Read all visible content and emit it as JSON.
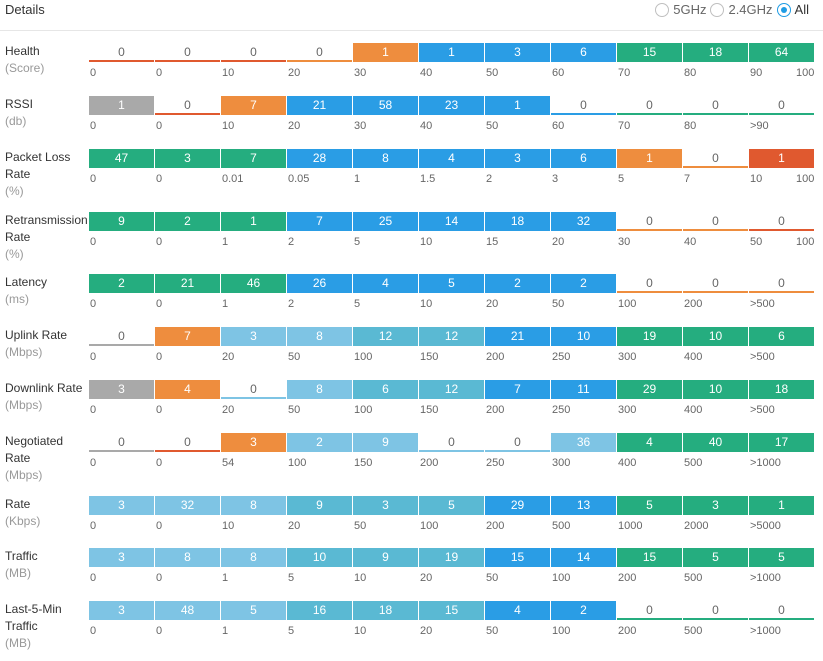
{
  "header": {
    "title": "Details",
    "radio_options": [
      {
        "label": "5GHz",
        "checked": false
      },
      {
        "label": "2.4GHz",
        "checked": false
      },
      {
        "label": "All",
        "checked": true
      }
    ]
  },
  "colors": {
    "red": "#e0592f",
    "orange": "#ee8d3e",
    "gray": "#a9a9a9",
    "lightblue": "#7ec4e4",
    "cyan": "#5ab9d3",
    "blue": "#2a9de5",
    "green": "#25ad7f",
    "empty_text": "#666666"
  },
  "rows": [
    {
      "label_lines": [
        "Health"
      ],
      "unit": "(Score)",
      "segments": [
        {
          "value": "0",
          "color": "red",
          "empty": true
        },
        {
          "value": "0",
          "color": "red",
          "empty": true
        },
        {
          "value": "0",
          "color": "red",
          "empty": true
        },
        {
          "value": "0",
          "color": "orange",
          "empty": true
        },
        {
          "value": "1",
          "color": "orange",
          "empty": false
        },
        {
          "value": "1",
          "color": "blue",
          "empty": false
        },
        {
          "value": "3",
          "color": "blue",
          "empty": false
        },
        {
          "value": "6",
          "color": "blue",
          "empty": false
        },
        {
          "value": "15",
          "color": "green",
          "empty": false
        },
        {
          "value": "18",
          "color": "green",
          "empty": false
        },
        {
          "value": "64",
          "color": "green",
          "empty": false
        }
      ],
      "ticks": [
        "0",
        "0",
        "10",
        "20",
        "30",
        "40",
        "50",
        "60",
        "70",
        "80",
        "90",
        "100"
      ]
    },
    {
      "label_lines": [
        "RSSI"
      ],
      "unit": "(db)",
      "segments": [
        {
          "value": "1",
          "color": "gray",
          "empty": false
        },
        {
          "value": "0",
          "color": "red",
          "empty": true
        },
        {
          "value": "7",
          "color": "orange",
          "empty": false
        },
        {
          "value": "21",
          "color": "blue",
          "empty": false
        },
        {
          "value": "58",
          "color": "blue",
          "empty": false
        },
        {
          "value": "23",
          "color": "blue",
          "empty": false
        },
        {
          "value": "1",
          "color": "blue",
          "empty": false
        },
        {
          "value": "0",
          "color": "blue",
          "empty": true
        },
        {
          "value": "0",
          "color": "green",
          "empty": true
        },
        {
          "value": "0",
          "color": "green",
          "empty": true
        },
        {
          "value": "0",
          "color": "green",
          "empty": true
        }
      ],
      "ticks": [
        "0",
        "0",
        "10",
        "20",
        "30",
        "40",
        "50",
        "60",
        "70",
        "80",
        ">90"
      ]
    },
    {
      "label_lines": [
        "Packet Loss",
        "Rate"
      ],
      "unit": "(%)",
      "segments": [
        {
          "value": "47",
          "color": "green",
          "empty": false
        },
        {
          "value": "3",
          "color": "green",
          "empty": false
        },
        {
          "value": "7",
          "color": "green",
          "empty": false
        },
        {
          "value": "28",
          "color": "blue",
          "empty": false
        },
        {
          "value": "8",
          "color": "blue",
          "empty": false
        },
        {
          "value": "4",
          "color": "blue",
          "empty": false
        },
        {
          "value": "3",
          "color": "blue",
          "empty": false
        },
        {
          "value": "6",
          "color": "blue",
          "empty": false
        },
        {
          "value": "1",
          "color": "orange",
          "empty": false
        },
        {
          "value": "0",
          "color": "orange",
          "empty": true
        },
        {
          "value": "1",
          "color": "red",
          "empty": false
        }
      ],
      "ticks": [
        "0",
        "0",
        "0.01",
        "0.05",
        "1",
        "1.5",
        "2",
        "3",
        "5",
        "7",
        "10",
        "100"
      ]
    },
    {
      "label_lines": [
        "Retransmission",
        "Rate"
      ],
      "unit": "(%)",
      "segments": [
        {
          "value": "9",
          "color": "green",
          "empty": false
        },
        {
          "value": "2",
          "color": "green",
          "empty": false
        },
        {
          "value": "1",
          "color": "green",
          "empty": false
        },
        {
          "value": "7",
          "color": "blue",
          "empty": false
        },
        {
          "value": "25",
          "color": "blue",
          "empty": false
        },
        {
          "value": "14",
          "color": "blue",
          "empty": false
        },
        {
          "value": "18",
          "color": "blue",
          "empty": false
        },
        {
          "value": "32",
          "color": "blue",
          "empty": false
        },
        {
          "value": "0",
          "color": "orange",
          "empty": true
        },
        {
          "value": "0",
          "color": "orange",
          "empty": true
        },
        {
          "value": "0",
          "color": "red",
          "empty": true
        }
      ],
      "ticks": [
        "0",
        "0",
        "1",
        "2",
        "5",
        "10",
        "15",
        "20",
        "30",
        "40",
        "50",
        "100"
      ]
    },
    {
      "label_lines": [
        "Latency"
      ],
      "unit": "(ms)",
      "segments": [
        {
          "value": "2",
          "color": "green",
          "empty": false
        },
        {
          "value": "21",
          "color": "green",
          "empty": false
        },
        {
          "value": "46",
          "color": "green",
          "empty": false
        },
        {
          "value": "26",
          "color": "blue",
          "empty": false
        },
        {
          "value": "4",
          "color": "blue",
          "empty": false
        },
        {
          "value": "5",
          "color": "blue",
          "empty": false
        },
        {
          "value": "2",
          "color": "blue",
          "empty": false
        },
        {
          "value": "2",
          "color": "blue",
          "empty": false
        },
        {
          "value": "0",
          "color": "orange",
          "empty": true
        },
        {
          "value": "0",
          "color": "orange",
          "empty": true
        },
        {
          "value": "0",
          "color": "orange",
          "empty": true
        }
      ],
      "ticks": [
        "0",
        "0",
        "1",
        "2",
        "5",
        "10",
        "20",
        "50",
        "100",
        "200",
        ">500"
      ]
    },
    {
      "label_lines": [
        "Uplink Rate"
      ],
      "unit": "(Mbps)",
      "segments": [
        {
          "value": "0",
          "color": "gray",
          "empty": true
        },
        {
          "value": "7",
          "color": "orange",
          "empty": false
        },
        {
          "value": "3",
          "color": "lightblue",
          "empty": false
        },
        {
          "value": "8",
          "color": "lightblue",
          "empty": false
        },
        {
          "value": "12",
          "color": "cyan",
          "empty": false
        },
        {
          "value": "12",
          "color": "cyan",
          "empty": false
        },
        {
          "value": "21",
          "color": "blue",
          "empty": false
        },
        {
          "value": "10",
          "color": "blue",
          "empty": false
        },
        {
          "value": "19",
          "color": "green",
          "empty": false
        },
        {
          "value": "10",
          "color": "green",
          "empty": false
        },
        {
          "value": "6",
          "color": "green",
          "empty": false
        }
      ],
      "ticks": [
        "0",
        "0",
        "20",
        "50",
        "100",
        "150",
        "200",
        "250",
        "300",
        "400",
        ">500"
      ]
    },
    {
      "label_lines": [
        "Downlink Rate"
      ],
      "unit": "(Mbps)",
      "segments": [
        {
          "value": "3",
          "color": "gray",
          "empty": false
        },
        {
          "value": "4",
          "color": "orange",
          "empty": false
        },
        {
          "value": "0",
          "color": "lightblue",
          "empty": true
        },
        {
          "value": "8",
          "color": "lightblue",
          "empty": false
        },
        {
          "value": "6",
          "color": "cyan",
          "empty": false
        },
        {
          "value": "12",
          "color": "cyan",
          "empty": false
        },
        {
          "value": "7",
          "color": "blue",
          "empty": false
        },
        {
          "value": "11",
          "color": "blue",
          "empty": false
        },
        {
          "value": "29",
          "color": "green",
          "empty": false
        },
        {
          "value": "10",
          "color": "green",
          "empty": false
        },
        {
          "value": "18",
          "color": "green",
          "empty": false
        }
      ],
      "ticks": [
        "0",
        "0",
        "20",
        "50",
        "100",
        "150",
        "200",
        "250",
        "300",
        "400",
        ">500"
      ]
    },
    {
      "label_lines": [
        "Negotiated",
        "Rate"
      ],
      "unit": "(Mbps)",
      "segments": [
        {
          "value": "0",
          "color": "gray",
          "empty": true
        },
        {
          "value": "0",
          "color": "red",
          "empty": true
        },
        {
          "value": "3",
          "color": "orange",
          "empty": false
        },
        {
          "value": "2",
          "color": "lightblue",
          "empty": false
        },
        {
          "value": "9",
          "color": "lightblue",
          "empty": false
        },
        {
          "value": "0",
          "color": "lightblue",
          "empty": true
        },
        {
          "value": "0",
          "color": "lightblue",
          "empty": true
        },
        {
          "value": "36",
          "color": "lightblue",
          "empty": false
        },
        {
          "value": "4",
          "color": "green",
          "empty": false
        },
        {
          "value": "40",
          "color": "green",
          "empty": false
        },
        {
          "value": "17",
          "color": "green",
          "empty": false
        }
      ],
      "ticks": [
        "0",
        "0",
        "54",
        "100",
        "150",
        "200",
        "250",
        "300",
        "400",
        "500",
        ">1000"
      ]
    },
    {
      "label_lines": [
        "Rate"
      ],
      "unit": "(Kbps)",
      "segments": [
        {
          "value": "3",
          "color": "lightblue",
          "empty": false
        },
        {
          "value": "32",
          "color": "lightblue",
          "empty": false
        },
        {
          "value": "8",
          "color": "lightblue",
          "empty": false
        },
        {
          "value": "9",
          "color": "cyan",
          "empty": false
        },
        {
          "value": "3",
          "color": "cyan",
          "empty": false
        },
        {
          "value": "5",
          "color": "cyan",
          "empty": false
        },
        {
          "value": "29",
          "color": "blue",
          "empty": false
        },
        {
          "value": "13",
          "color": "blue",
          "empty": false
        },
        {
          "value": "5",
          "color": "green",
          "empty": false
        },
        {
          "value": "3",
          "color": "green",
          "empty": false
        },
        {
          "value": "1",
          "color": "green",
          "empty": false
        }
      ],
      "ticks": [
        "0",
        "0",
        "10",
        "20",
        "50",
        "100",
        "200",
        "500",
        "1000",
        "2000",
        ">5000"
      ]
    },
    {
      "label_lines": [
        "Traffic"
      ],
      "unit": "(MB)",
      "segments": [
        {
          "value": "3",
          "color": "lightblue",
          "empty": false
        },
        {
          "value": "8",
          "color": "lightblue",
          "empty": false
        },
        {
          "value": "8",
          "color": "lightblue",
          "empty": false
        },
        {
          "value": "10",
          "color": "cyan",
          "empty": false
        },
        {
          "value": "9",
          "color": "cyan",
          "empty": false
        },
        {
          "value": "19",
          "color": "cyan",
          "empty": false
        },
        {
          "value": "15",
          "color": "blue",
          "empty": false
        },
        {
          "value": "14",
          "color": "blue",
          "empty": false
        },
        {
          "value": "15",
          "color": "green",
          "empty": false
        },
        {
          "value": "5",
          "color": "green",
          "empty": false
        },
        {
          "value": "5",
          "color": "green",
          "empty": false
        }
      ],
      "ticks": [
        "0",
        "0",
        "1",
        "5",
        "10",
        "20",
        "50",
        "100",
        "200",
        "500",
        ">1000"
      ]
    },
    {
      "label_lines": [
        "Last-5-Min",
        "Traffic"
      ],
      "unit": "(MB)",
      "segments": [
        {
          "value": "3",
          "color": "lightblue",
          "empty": false
        },
        {
          "value": "48",
          "color": "lightblue",
          "empty": false
        },
        {
          "value": "5",
          "color": "lightblue",
          "empty": false
        },
        {
          "value": "16",
          "color": "cyan",
          "empty": false
        },
        {
          "value": "18",
          "color": "cyan",
          "empty": false
        },
        {
          "value": "15",
          "color": "cyan",
          "empty": false
        },
        {
          "value": "4",
          "color": "blue",
          "empty": false
        },
        {
          "value": "2",
          "color": "blue",
          "empty": false
        },
        {
          "value": "0",
          "color": "green",
          "empty": true
        },
        {
          "value": "0",
          "color": "green",
          "empty": true
        },
        {
          "value": "0",
          "color": "green",
          "empty": true
        }
      ],
      "ticks": [
        "0",
        "0",
        "1",
        "5",
        "10",
        "20",
        "50",
        "100",
        "200",
        "500",
        ">1000"
      ]
    }
  ]
}
